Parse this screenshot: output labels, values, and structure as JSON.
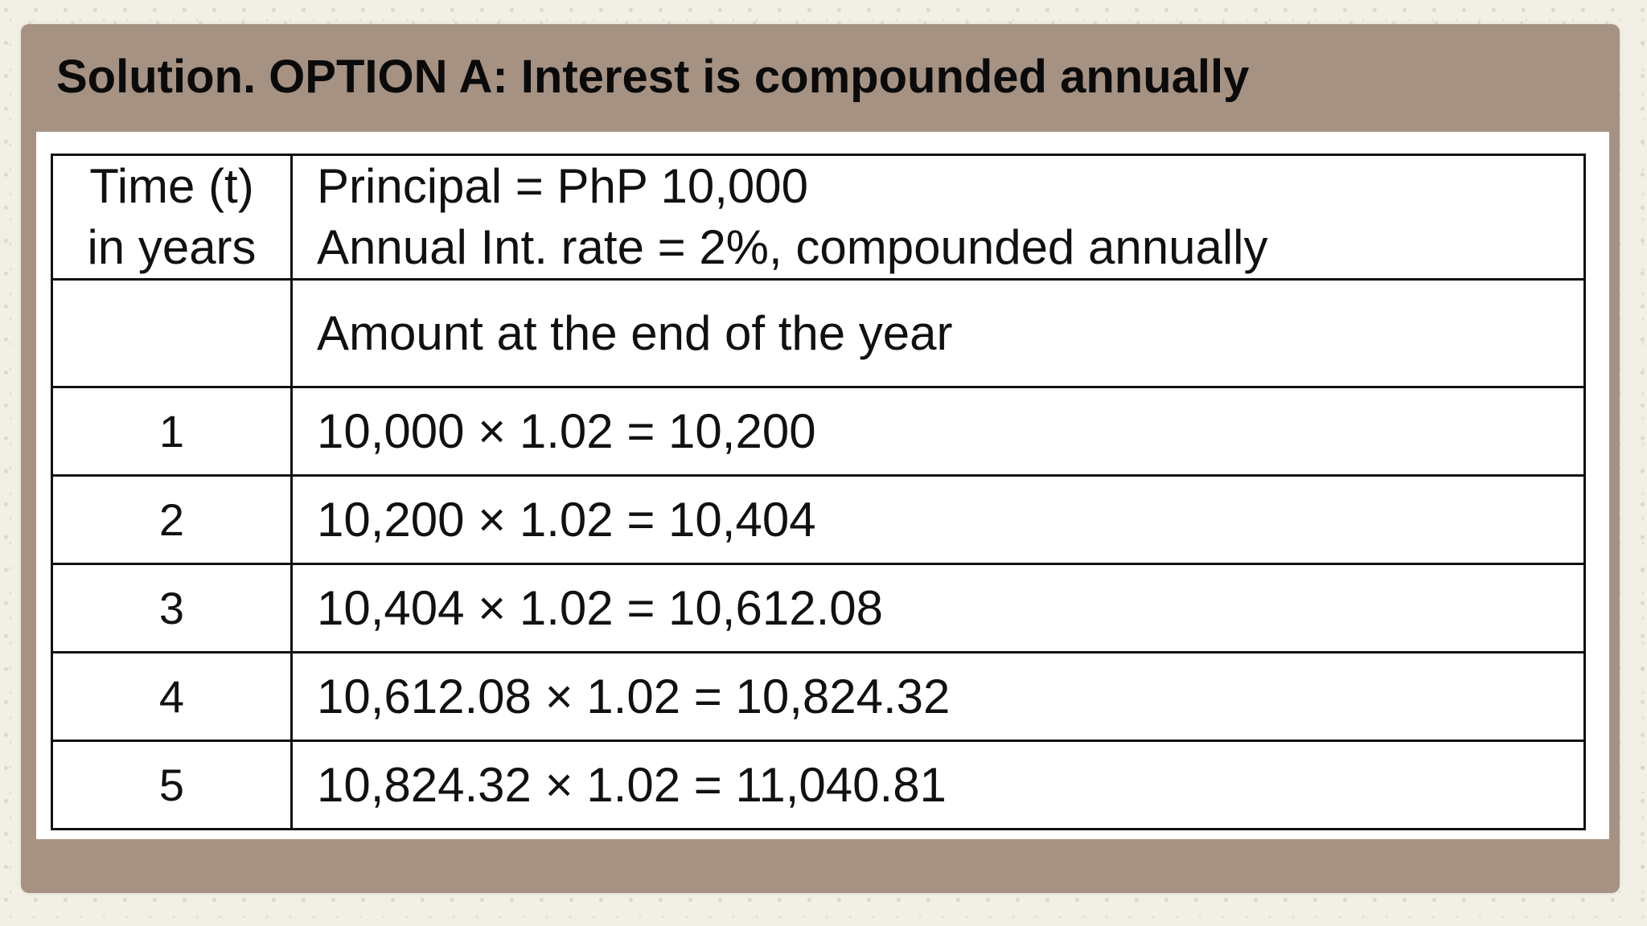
{
  "slide": {
    "title": "Solution. OPTION A: Interest is compounded annually"
  },
  "table": {
    "header": {
      "time_line1": "Time (t)",
      "time_line2": "in years",
      "principal": "Principal = PhP 10,000",
      "rate": "Annual Int. rate = 2%, compounded annually"
    },
    "subheader": "Amount at the end of the year",
    "rows": [
      {
        "year": "1",
        "calculation": "10,000 × 1.02 = 10,200"
      },
      {
        "year": "2",
        "calculation": "10,200 × 1.02 = 10,404"
      },
      {
        "year": "3",
        "calculation": "10,404 × 1.02 = 10,612.08"
      },
      {
        "year": "4",
        "calculation": "10,612.08 × 1.02 = 10,824.32"
      },
      {
        "year": "5",
        "calculation": "10,824.32 × 1.02 = 11,040.81"
      }
    ]
  },
  "colors": {
    "frame": "#a69282",
    "background": "#f2efe6",
    "panel": "#ffffff",
    "text": "#111111"
  }
}
